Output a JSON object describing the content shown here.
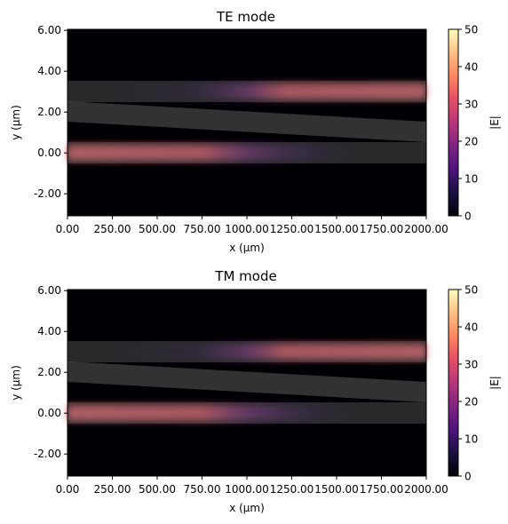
{
  "chart_data": [
    {
      "type": "heatmap",
      "title": "TE mode",
      "xlabel": "x (µm)",
      "ylabel": "y (µm)",
      "xlim": [
        0,
        2000
      ],
      "ylim": [
        -3.1,
        6.2
      ],
      "x_ticks": [
        "0.00",
        "250.00",
        "500.00",
        "750.00",
        "1000.00",
        "1250.00",
        "1500.00",
        "1750.00",
        "2000.00"
      ],
      "y_ticks": [
        "-2.00",
        "0.00",
        "2.00",
        "4.00",
        "6.00"
      ],
      "colorbar": {
        "label": "|E|",
        "range": [
          0,
          50
        ],
        "ticks": [
          "0",
          "10",
          "20",
          "30",
          "40",
          "50"
        ],
        "colormap": "magma"
      },
      "waveguides": [
        {
          "name": "upper straight",
          "x": [
            0,
            2000
          ],
          "y_center": [
            3.0,
            3.0
          ],
          "width": 1.0
        },
        {
          "name": "tapered middle",
          "x": [
            0,
            2000
          ],
          "y_center": [
            2.0,
            1.0
          ],
          "width": 1.0
        },
        {
          "name": "lower straight",
          "x": [
            0,
            2000
          ],
          "y_center": [
            0.0,
            0.0
          ],
          "width": 1.0
        }
      ],
      "field_peak": 34
    },
    {
      "type": "heatmap",
      "title": "TM mode",
      "xlabel": "x (µm)",
      "ylabel": "y (µm)",
      "xlim": [
        0,
        2000
      ],
      "ylim": [
        -3.1,
        6.2
      ],
      "x_ticks": [
        "0.00",
        "250.00",
        "500.00",
        "750.00",
        "1000.00",
        "1250.00",
        "1500.00",
        "1750.00",
        "2000.00"
      ],
      "y_ticks": [
        "-2.00",
        "0.00",
        "2.00",
        "4.00",
        "6.00"
      ],
      "colorbar": {
        "label": "|E|",
        "range": [
          0,
          50
        ],
        "ticks": [
          "0",
          "10",
          "20",
          "30",
          "40",
          "50"
        ],
        "colormap": "magma"
      },
      "waveguides": [
        {
          "name": "upper straight",
          "x": [
            0,
            2000
          ],
          "y_center": [
            3.0,
            3.0
          ],
          "width": 1.0
        },
        {
          "name": "tapered middle",
          "x": [
            0,
            2000
          ],
          "y_center": [
            2.0,
            1.0
          ],
          "width": 1.0
        },
        {
          "name": "lower straight",
          "x": [
            0,
            2000
          ],
          "y_center": [
            0.0,
            0.0
          ],
          "width": 1.0
        }
      ],
      "field_peak": 34
    }
  ]
}
